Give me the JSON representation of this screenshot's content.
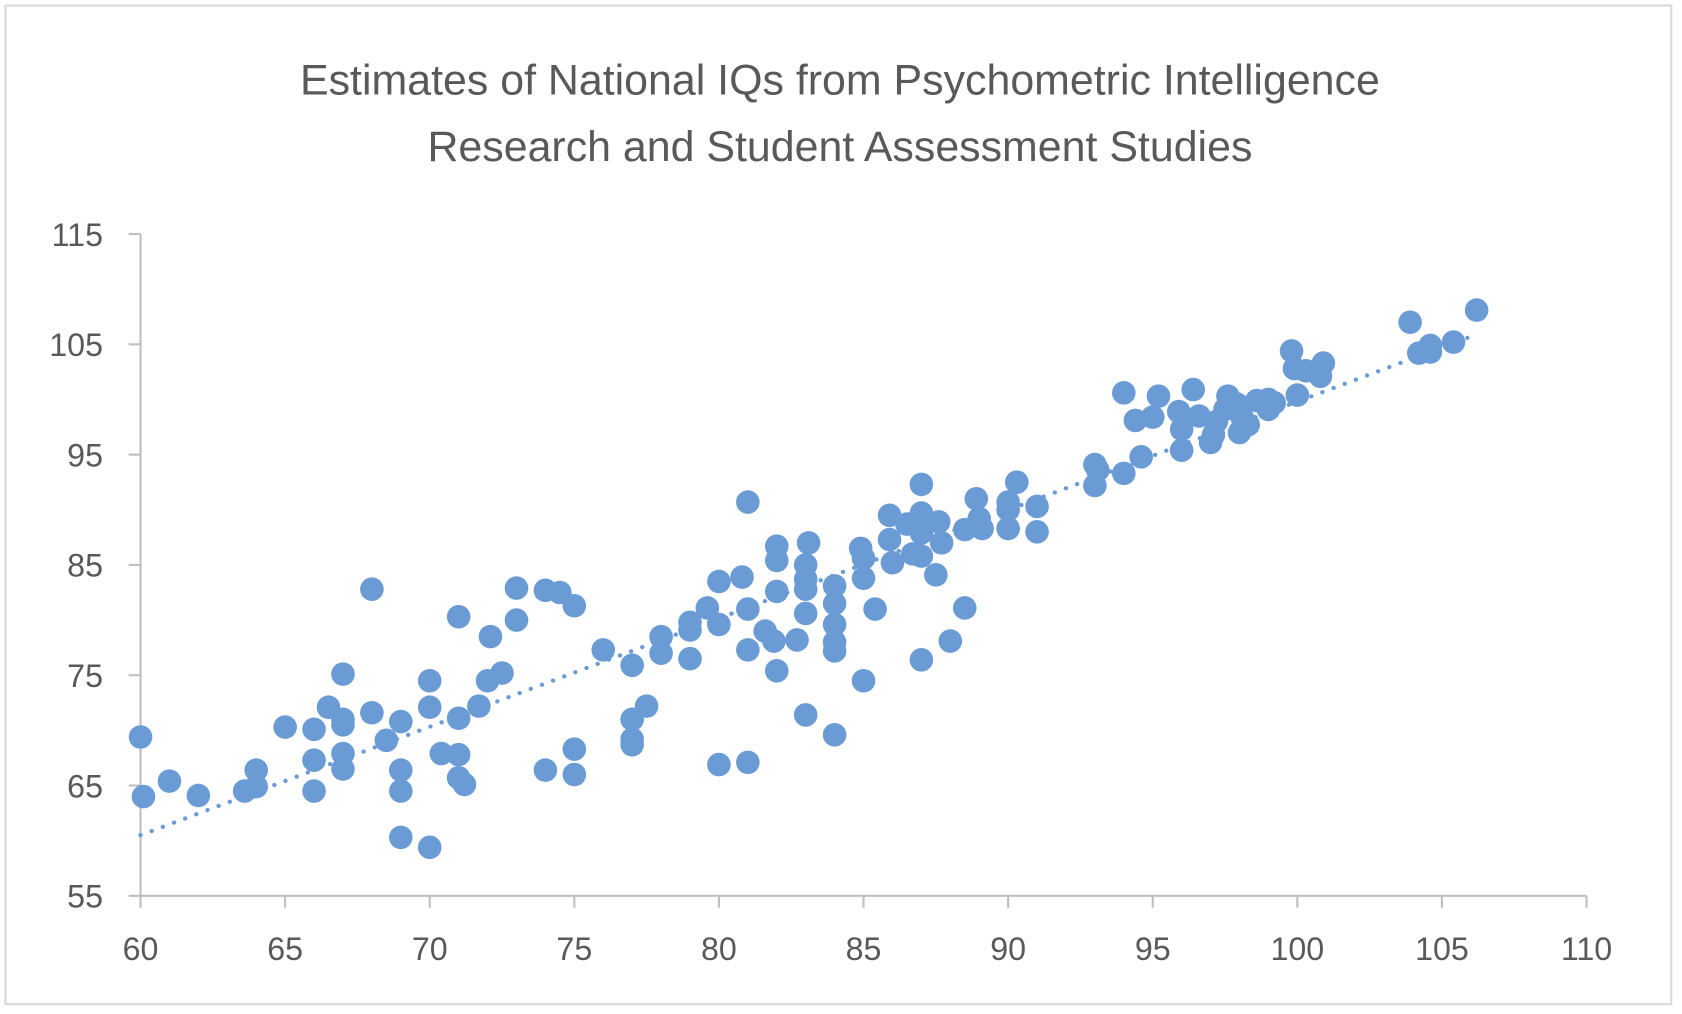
{
  "chart_data": {
    "type": "scatter",
    "title": [
      "Estimates of National IQs from Psychometric Intelligence",
      "Research and Student Assessment Studies"
    ],
    "xlabel": "",
    "ylabel": "",
    "xlim": [
      60,
      110
    ],
    "ylim": [
      55,
      115
    ],
    "xticks": [
      "60",
      "65",
      "70",
      "75",
      "80",
      "85",
      "90",
      "95",
      "100",
      "105",
      "110"
    ],
    "yticks": [
      "55",
      "65",
      "75",
      "85",
      "95",
      "105",
      "115"
    ],
    "grid": false,
    "legend": "none",
    "marker_color": "#6a9bd4",
    "trendline": {
      "type": "linear",
      "style": "dotted",
      "x": [
        60,
        106.2
      ],
      "y": [
        60.5,
        105.9
      ]
    },
    "points": [
      [
        60,
        69.4
      ],
      [
        60.1,
        64.0
      ],
      [
        61,
        65.4
      ],
      [
        62,
        64.1
      ],
      [
        63.6,
        64.5
      ],
      [
        64,
        64.9
      ],
      [
        64,
        66.4
      ],
      [
        65,
        70.3
      ],
      [
        66,
        70.1
      ],
      [
        66,
        67.3
      ],
      [
        66,
        64.5
      ],
      [
        66.5,
        72.1
      ],
      [
        67,
        75.1
      ],
      [
        67,
        71.0
      ],
      [
        67,
        70.5
      ],
      [
        67,
        67.9
      ],
      [
        67,
        66.5
      ],
      [
        68,
        82.8
      ],
      [
        68,
        71.6
      ],
      [
        68.5,
        69.1
      ],
      [
        69,
        70.8
      ],
      [
        69,
        66.4
      ],
      [
        69,
        64.5
      ],
      [
        69,
        60.3
      ],
      [
        70,
        74.5
      ],
      [
        70,
        72.1
      ],
      [
        70,
        59.4
      ],
      [
        70.4,
        67.9
      ],
      [
        71,
        80.3
      ],
      [
        71,
        71.1
      ],
      [
        71,
        67.8
      ],
      [
        71,
        65.7
      ],
      [
        71.2,
        65.1
      ],
      [
        71.7,
        72.2
      ],
      [
        72,
        74.5
      ],
      [
        72.1,
        78.5
      ],
      [
        72.5,
        75.2
      ],
      [
        73,
        82.9
      ],
      [
        73,
        80
      ],
      [
        74,
        82.7
      ],
      [
        74,
        66.4
      ],
      [
        74.5,
        82.5
      ],
      [
        75,
        81.3
      ],
      [
        75,
        68.3
      ],
      [
        75,
        66
      ],
      [
        76,
        77.3
      ],
      [
        77,
        75.9
      ],
      [
        77,
        71
      ],
      [
        77,
        69.2
      ],
      [
        77,
        68.7
      ],
      [
        77.5,
        72.2
      ],
      [
        78,
        78.5
      ],
      [
        78,
        77
      ],
      [
        79,
        79.8
      ],
      [
        79,
        79.1
      ],
      [
        79,
        76.5
      ],
      [
        79.6,
        81.1
      ],
      [
        80,
        83.5
      ],
      [
        80,
        79.6
      ],
      [
        80,
        66.9
      ],
      [
        80.8,
        83.9
      ],
      [
        81,
        90.7
      ],
      [
        81,
        81
      ],
      [
        81,
        77.3
      ],
      [
        81,
        67.1
      ],
      [
        81.6,
        79
      ],
      [
        81.9,
        78.1
      ],
      [
        82,
        86.7
      ],
      [
        82,
        85.4
      ],
      [
        82,
        82.6
      ],
      [
        82,
        75.4
      ],
      [
        82.7,
        78.2
      ],
      [
        83,
        71.4
      ],
      [
        83,
        80.6
      ],
      [
        83,
        82.8
      ],
      [
        83,
        83.7
      ],
      [
        83,
        85
      ],
      [
        83.1,
        87
      ],
      [
        84,
        83.1
      ],
      [
        84,
        81.5
      ],
      [
        84,
        79.6
      ],
      [
        84,
        78
      ],
      [
        84,
        77.2
      ],
      [
        84,
        69.6
      ],
      [
        84.9,
        86.5
      ],
      [
        85,
        85.6
      ],
      [
        85,
        83.8
      ],
      [
        85,
        74.5
      ],
      [
        85.4,
        81
      ],
      [
        85.9,
        89.5
      ],
      [
        85.9,
        87.3
      ],
      [
        86,
        85.2
      ],
      [
        86.5,
        88.7
      ],
      [
        86.7,
        86
      ],
      [
        87,
        92.3
      ],
      [
        87,
        89.7
      ],
      [
        87,
        87.9
      ],
      [
        87,
        85.8
      ],
      [
        87,
        76.4
      ],
      [
        87.5,
        84.1
      ],
      [
        87.6,
        88.9
      ],
      [
        87.7,
        87
      ],
      [
        88,
        78.1
      ],
      [
        88.5,
        88.2
      ],
      [
        88.5,
        81.1
      ],
      [
        88.9,
        91
      ],
      [
        89,
        89.2
      ],
      [
        89.1,
        88.3
      ],
      [
        90,
        90.7
      ],
      [
        90,
        90
      ],
      [
        90,
        88.3
      ],
      [
        90.3,
        92.5
      ],
      [
        91,
        90.3
      ],
      [
        91,
        88
      ],
      [
        93,
        94.1
      ],
      [
        93,
        92.2
      ],
      [
        93.1,
        93.6
      ],
      [
        94,
        100.6
      ],
      [
        94,
        93.3
      ],
      [
        94.4,
        98.1
      ],
      [
        94.6,
        94.8
      ],
      [
        95,
        98.4
      ],
      [
        95.2,
        100.3
      ],
      [
        95.9,
        98.9
      ],
      [
        96,
        97.3
      ],
      [
        96,
        95.4
      ],
      [
        96.4,
        100.9
      ],
      [
        96.6,
        98.5
      ],
      [
        97,
        96.1
      ],
      [
        97.1,
        96.8
      ],
      [
        97.2,
        98
      ],
      [
        97.5,
        99.1
      ],
      [
        97.6,
        100.3
      ],
      [
        97.9,
        99.6
      ],
      [
        98,
        97
      ],
      [
        98.1,
        98.3
      ],
      [
        98.3,
        97.7
      ],
      [
        98.6,
        99.9
      ],
      [
        99,
        99.1
      ],
      [
        99,
        100
      ],
      [
        99.2,
        99.7
      ],
      [
        99.8,
        104.4
      ],
      [
        99.9,
        102.8
      ],
      [
        100,
        100.4
      ],
      [
        100.3,
        102.6
      ],
      [
        100.8,
        102.1
      ],
      [
        100.9,
        103.3
      ],
      [
        103.9,
        107
      ],
      [
        104.2,
        104.2
      ],
      [
        104.6,
        104.9
      ],
      [
        104.6,
        104.3
      ],
      [
        105.4,
        105.2
      ],
      [
        106.2,
        108.1
      ]
    ]
  }
}
